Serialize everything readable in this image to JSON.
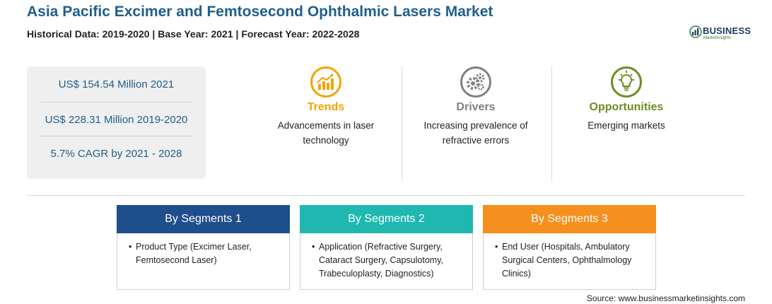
{
  "header": {
    "title": "Asia Pacific Excimer and Femtosecond Ophthalmic Lasers Market",
    "subtitle": "Historical Data: 2019-2020 | Base Year: 2021 | Forecast Year: 2022-2028"
  },
  "logo": {
    "word": "BUSINESS",
    "sub": "MarketInsights"
  },
  "stats": [
    "US$ 154.54 Million 2021",
    "US$ 228.31 Million 2019-2020",
    "5.7% CAGR by 2021 - 2028"
  ],
  "factors": [
    {
      "title": "Trends",
      "text": "Advancements in laser technology",
      "color": "#f4a300",
      "icon": "chart-growth-icon"
    },
    {
      "title": "Drivers",
      "text": "Increasing prevalence of refractive errors",
      "color": "#808080",
      "icon": "gears-icon"
    },
    {
      "title": "Opportunities",
      "text": "Emerging markets",
      "color": "#6b8e23",
      "icon": "lightbulb-icon"
    }
  ],
  "segments": [
    {
      "heading": "By Segments 1",
      "color": "#1f4e8c",
      "item": "Product Type (Excimer Laser, Femtosecond Laser)"
    },
    {
      "heading": "By Segments 2",
      "color": "#1fb8b0",
      "item": "Application (Refractive Surgery, Cataract Surgery, Capsulotomy, Trabeculoplasty, Diagnostics)"
    },
    {
      "heading": "By Segments 3",
      "color": "#f5901e",
      "item": "End User (Hospitals, Ambulatory Surgical Centers, Ophthalmology Clinics)"
    }
  ],
  "source": "Source: www.businessmarketinsights.com"
}
